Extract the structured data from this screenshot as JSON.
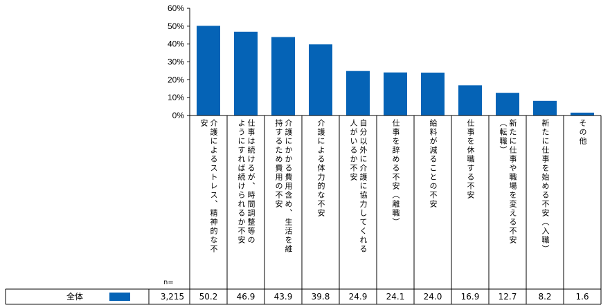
{
  "chart_data": {
    "type": "bar",
    "categories": [
      [
        "介護によるストレス、精神的な不",
        "安"
      ],
      [
        "仕事は続けるが、時間調整等の",
        "ようにすれば続けられるか不安"
      ],
      [
        "介護にかかる費用含め、生活を維",
        "持するため費用の不安"
      ],
      [
        "介護による体力的な不安"
      ],
      [
        "自分以外に介護に協力してくれる",
        "人がいるか不安"
      ],
      [
        "仕事を辞める不安（離職）"
      ],
      [
        "給料が減ることの不安"
      ],
      [
        "仕事を休職する不安"
      ],
      [
        "新たに仕事や職場を変える不安",
        "（転職）"
      ],
      [
        "新たに仕事を始める不安（入職）"
      ],
      [
        "その他"
      ]
    ],
    "series": [
      {
        "name": "全体",
        "n": "3,215",
        "values": [
          50.2,
          46.9,
          43.9,
          39.8,
          24.9,
          24.1,
          24.0,
          16.9,
          12.7,
          8.2,
          1.6
        ],
        "value_labels": [
          "50.2",
          "46.9",
          "43.9",
          "39.8",
          "24.9",
          "24.1",
          "24.0",
          "16.9",
          "12.7",
          "8.2",
          "1.6"
        ]
      }
    ],
    "ylim": [
      0,
      60
    ],
    "yticks": [
      "0%",
      "10%",
      "20%",
      "30%",
      "40%",
      "50%",
      "60%"
    ],
    "n_label": "n=",
    "bar_color": "#0563B6",
    "grid": false,
    "legend": "bottom-left table"
  }
}
